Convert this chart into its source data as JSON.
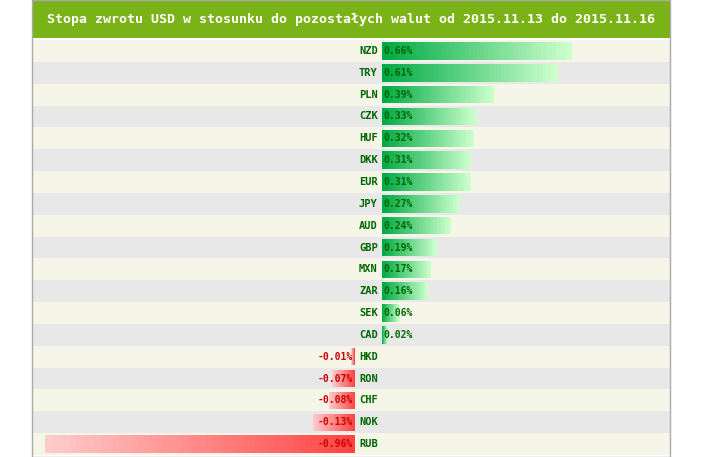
{
  "title": "Stopa zwrotu USD w stosunku do pozostałych walut od 2015.11.13 do 2015.11.16",
  "title_usd": "USD",
  "currencies": [
    "NZD",
    "TRY",
    "PLN",
    "CZK",
    "HUF",
    "DKK",
    "EUR",
    "JPY",
    "AUD",
    "GBP",
    "MXN",
    "ZAR",
    "SEK",
    "CAD",
    "HKD",
    "RON",
    "CHF",
    "NOK",
    "RUB"
  ],
  "values": [
    0.66,
    0.61,
    0.39,
    0.33,
    0.32,
    0.31,
    0.31,
    0.27,
    0.24,
    0.19,
    0.17,
    0.16,
    0.06,
    0.02,
    -0.01,
    -0.07,
    -0.08,
    -0.13,
    -0.96
  ],
  "title_bg": "#7ab317",
  "title_fg": "#ffffff",
  "title_usd_color": "#006666",
  "row_bg_odd": "#f5f5e8",
  "row_bg_even": "#e8e8e8",
  "bar_green_dark": "#00aa44",
  "bar_green_light": "#ccffcc",
  "bar_red_dark": "#ff4444",
  "bar_red_light": "#ffcccc",
  "label_color": "#006600",
  "value_color": "#006600",
  "max_val": 0.96,
  "figwidth": 7.02,
  "figheight": 4.57,
  "dpi": 100
}
